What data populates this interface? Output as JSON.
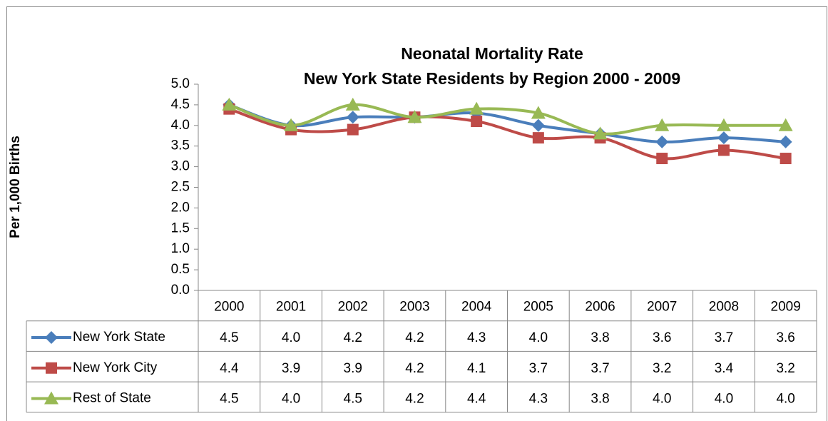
{
  "chart_data": {
    "type": "line",
    "title": "Neonatal Mortality Rate",
    "subtitle": "New York State Residents by Region  2000 - 2009",
    "y_label": "Per 1,000 Births",
    "categories": [
      "2000",
      "2001",
      "2002",
      "2003",
      "2004",
      "2005",
      "2006",
      "2007",
      "2008",
      "2009"
    ],
    "series": [
      {
        "name": "New York State",
        "color": "#4a7ebb",
        "marker": "diamond",
        "values": [
          4.5,
          4.0,
          4.2,
          4.2,
          4.3,
          4.0,
          3.8,
          3.6,
          3.7,
          3.6
        ],
        "value_labels": [
          "4.5",
          "4.0",
          "4.2",
          "4.2",
          "4.3",
          "4.0",
          "3.8",
          "3.6",
          "3.7",
          "3.6"
        ]
      },
      {
        "name": "New York City",
        "color": "#be4b48",
        "marker": "square",
        "values": [
          4.4,
          3.9,
          3.9,
          4.2,
          4.1,
          3.7,
          3.7,
          3.2,
          3.4,
          3.2
        ],
        "value_labels": [
          "4.4",
          "3.9",
          "3.9",
          "4.2",
          "4.1",
          "3.7",
          "3.7",
          "3.2",
          "3.4",
          "3.2"
        ]
      },
      {
        "name": "Rest of State",
        "color": "#98b954",
        "marker": "triangle",
        "values": [
          4.5,
          4.0,
          4.5,
          4.2,
          4.4,
          4.3,
          3.8,
          4.0,
          4.0,
          4.0
        ],
        "value_labels": [
          "4.5",
          "4.0",
          "4.5",
          "4.2",
          "4.4",
          "4.3",
          "3.8",
          "4.0",
          "4.0",
          "4.0"
        ]
      }
    ],
    "ylim": [
      0,
      5
    ],
    "yticks": [
      {
        "value": 0,
        "label": "0.0"
      },
      {
        "value": 0.5,
        "label": "0.5"
      },
      {
        "value": 1,
        "label": "1.0"
      },
      {
        "value": 1.5,
        "label": "1.5"
      },
      {
        "value": 2,
        "label": "2.0"
      },
      {
        "value": 2.5,
        "label": "2.5"
      },
      {
        "value": 3,
        "label": "3.0"
      },
      {
        "value": 3.5,
        "label": "3.5"
      },
      {
        "value": 4,
        "label": "4.0"
      },
      {
        "value": 4.5,
        "label": "4.5"
      },
      {
        "value": 5,
        "label": "5.0"
      }
    ],
    "smooth": true
  }
}
